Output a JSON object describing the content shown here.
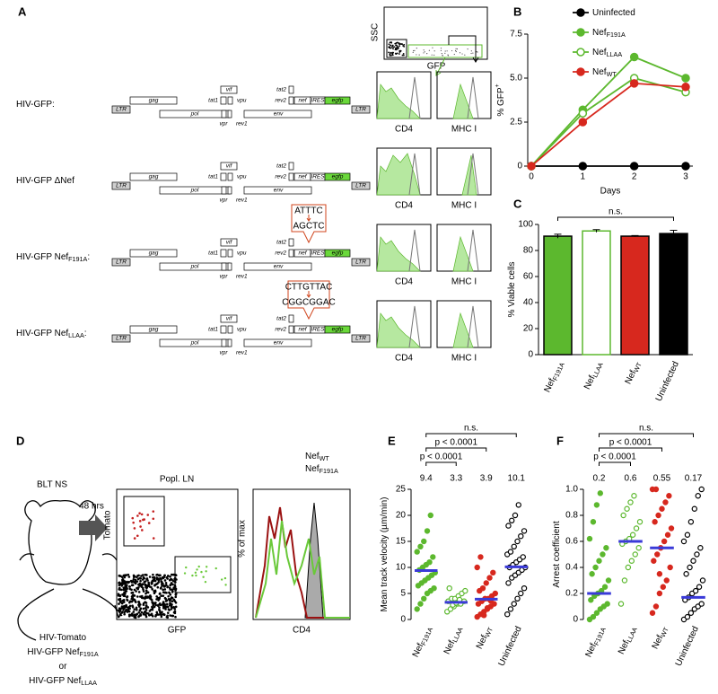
{
  "panel_a": {
    "label": "A",
    "constructs": [
      {
        "text": "HIV-GFP",
        "suffix": ":"
      },
      {
        "text": "HIV-GFP ΔNef"
      },
      {
        "text": "HIV-GFP Nef",
        "sub": "F191A",
        "suffix": ":"
      },
      {
        "text": "HIV-GFP Nef",
        "sub": "LLAA",
        "suffix": ":"
      }
    ],
    "genes": {
      "ltr": "LTR",
      "gag": "gag",
      "pol": "pol",
      "vif": "vif",
      "tat1": "tat1",
      "vpu": "vpu",
      "vpr": "vpr",
      "rev1": "rev1",
      "env": "env",
      "tat2": "tat2",
      "rev2": "rev2",
      "nef": "nef",
      "ires": "IRES",
      "egfp": "egfp"
    },
    "mutations": [
      {
        "from": "ATTTC",
        "to": "AGCTC"
      },
      {
        "from": "CTTGTTAC",
        "to": "CGGCGGAC"
      }
    ],
    "flow": {
      "ssc": "SSC",
      "gfp": "GFP",
      "cd4": "CD4",
      "mhc": "MHC I"
    }
  },
  "panel_d": {
    "label": "D",
    "mouse": "BLT NS",
    "time": "48 hrs",
    "viruses": [
      {
        "text": "HIV-Tomato"
      },
      {
        "text": "HIV-GFP Nef",
        "sub": "F191A"
      },
      {
        "text": "or"
      },
      {
        "text": "HIV-GFP Nef",
        "sub": "LLAA"
      }
    ],
    "scatter_title": "Popl. LN",
    "scatter_ylabel": "Tomato",
    "scatter_xlabel": "GFP",
    "hist_ylabel": "% of max",
    "hist_xlabel": "CD4",
    "hist_legend": [
      {
        "text": "Nef",
        "sub": "WT"
      },
      {
        "text": "Nef",
        "sub": "F191A"
      }
    ]
  },
  "chart_data": [
    {
      "type": "line",
      "label": "B",
      "xlabel": "Days",
      "ylabel": "% GFP",
      "ylabel_sup": "+",
      "x": [
        0,
        1,
        2,
        3
      ],
      "xlim": [
        0,
        3
      ],
      "xticks": [
        0,
        1,
        2,
        3
      ],
      "ylim": [
        0,
        7.5
      ],
      "yticks": [
        0,
        2.5,
        {
          "value": 5,
          "label": "5.0"
        },
        7.5
      ],
      "grid": false,
      "series": [
        {
          "name": "Uninfected",
          "color": "#000000",
          "marker": "filled",
          "values": [
            0,
            0,
            0,
            0
          ]
        },
        {
          "name": "Nef",
          "name_sub": "F191A",
          "color": "#5cb82e",
          "marker": "filled",
          "values": [
            0,
            3.2,
            6.2,
            5.0
          ]
        },
        {
          "name": "Nef",
          "name_sub": "LLAA",
          "color": "#5cb82e",
          "marker": "open",
          "values": [
            0,
            3.0,
            5.0,
            4.2
          ]
        },
        {
          "name": "Nef",
          "name_sub": "WT",
          "color": "#d7281e",
          "marker": "filled",
          "values": [
            0,
            2.5,
            4.7,
            4.5
          ]
        }
      ]
    },
    {
      "type": "bar",
      "label": "C",
      "ylabel": "% Viable cells",
      "annotation": "n.s.",
      "categories": [
        {
          "text": "Nef",
          "sub": "F191A"
        },
        {
          "text": "Nef",
          "sub": "LLAA"
        },
        {
          "text": "Nef",
          "sub": "WT"
        },
        {
          "text": "Uninfected"
        }
      ],
      "values": [
        91,
        95,
        91,
        93
      ],
      "errors": [
        1.5,
        1,
        0.5,
        2.5
      ],
      "colors": [
        "#5cb82e",
        "#ffffff",
        "#d7281e",
        "#000000"
      ],
      "edge_colors": [
        "#000000",
        "#5cb82e",
        "#000000",
        "#000000"
      ],
      "ylim": [
        0,
        100
      ],
      "yticks": [
        0,
        20,
        40,
        60,
        80,
        100
      ],
      "grid": false
    },
    {
      "type": "strip",
      "label": "E",
      "ylabel": "Mean track velocity (µm/min)",
      "annotations": [
        "p < 0.0001",
        "p < 0.0001",
        "n.s."
      ],
      "categories": [
        {
          "text": "Nef",
          "sub": "F191A"
        },
        {
          "text": "Nef",
          "sub": "LLAA"
        },
        {
          "text": "Nef",
          "sub": "WT"
        },
        {
          "text": "Uninfected"
        }
      ],
      "means": [
        9.4,
        3.3,
        3.9,
        10.1
      ],
      "mean_color": "#3a3ad8",
      "ylim": [
        0,
        25
      ],
      "yticks": [
        0,
        5,
        10,
        15,
        20,
        25
      ],
      "grid": false,
      "series": [
        {
          "color": "#5cb82e",
          "marker": "filled",
          "values": [
            2,
            3,
            4,
            5,
            5.5,
            6,
            6.5,
            7,
            7.5,
            8,
            8.5,
            9,
            9.5,
            10,
            10.5,
            11,
            12,
            13,
            14,
            15,
            17,
            20
          ]
        },
        {
          "color": "#5cb82e",
          "marker": "open",
          "values": [
            1.5,
            2,
            2.5,
            3,
            3,
            3.5,
            3.5,
            4,
            4,
            4.5,
            5,
            5.5,
            6,
            2.8,
            3.2,
            3.8
          ]
        },
        {
          "color": "#d7281e",
          "marker": "filled",
          "values": [
            0.5,
            1,
            1.5,
            2,
            2.5,
            3,
            3,
            3.5,
            4,
            4,
            4.5,
            5,
            5.5,
            6,
            7,
            8,
            9,
            10,
            12,
            0.8,
            2.2,
            3.6
          ]
        },
        {
          "color": "#000000",
          "marker": "open",
          "values": [
            1,
            2,
            3,
            4,
            5,
            6,
            7,
            8,
            8.5,
            9,
            9.5,
            10,
            10,
            10.5,
            11,
            11.5,
            12,
            12.5,
            13,
            14,
            15,
            16,
            17,
            18,
            19,
            20,
            22
          ]
        }
      ]
    },
    {
      "type": "strip",
      "label": "F",
      "ylabel": "Arrest coefficient",
      "annotations": [
        "p < 0.0001",
        "p < 0.0001",
        "n.s."
      ],
      "categories": [
        {
          "text": "Nef",
          "sub": "F191A"
        },
        {
          "text": "Nef",
          "sub": "LLAA"
        },
        {
          "text": "Nef",
          "sub": "WT"
        },
        {
          "text": "Uninfected"
        }
      ],
      "means": [
        0.2,
        0.6,
        0.55,
        0.17
      ],
      "mean_color": "#3a3ad8",
      "ylim": [
        0,
        1
      ],
      "yticks": [
        0,
        0.2,
        0.4,
        0.6,
        0.8,
        {
          "value": 1,
          "label": "1.0"
        }
      ],
      "grid": false,
      "series": [
        {
          "color": "#5cb82e",
          "marker": "filled",
          "values": [
            0,
            0.02,
            0.05,
            0.08,
            0.1,
            0.12,
            0.15,
            0.18,
            0.2,
            0.22,
            0.25,
            0.3,
            0.35,
            0.4,
            0.45,
            0.5,
            0.55,
            0.62,
            0.75,
            0.88,
            0.97
          ]
        },
        {
          "color": "#5cb82e",
          "marker": "open",
          "values": [
            0.12,
            0.3,
            0.4,
            0.45,
            0.5,
            0.55,
            0.58,
            0.6,
            0.62,
            0.65,
            0.7,
            0.75,
            0.8,
            0.85,
            0.9,
            0.95
          ]
        },
        {
          "color": "#d7281e",
          "marker": "filled",
          "values": [
            0.05,
            0.1,
            0.2,
            0.25,
            0.3,
            0.4,
            0.45,
            0.5,
            0.55,
            0.6,
            0.65,
            0.7,
            0.75,
            0.8,
            0.85,
            0.9,
            0.95,
            1,
            1,
            0.35
          ]
        },
        {
          "color": "#000000",
          "marker": "open",
          "values": [
            0,
            0.02,
            0.05,
            0.08,
            0.1,
            0.12,
            0.15,
            0.17,
            0.2,
            0.22,
            0.25,
            0.3,
            0.35,
            0.4,
            0.45,
            0.5,
            0.55,
            0.6,
            0.65,
            0.75,
            0.85,
            0.95,
            1
          ]
        }
      ]
    }
  ]
}
